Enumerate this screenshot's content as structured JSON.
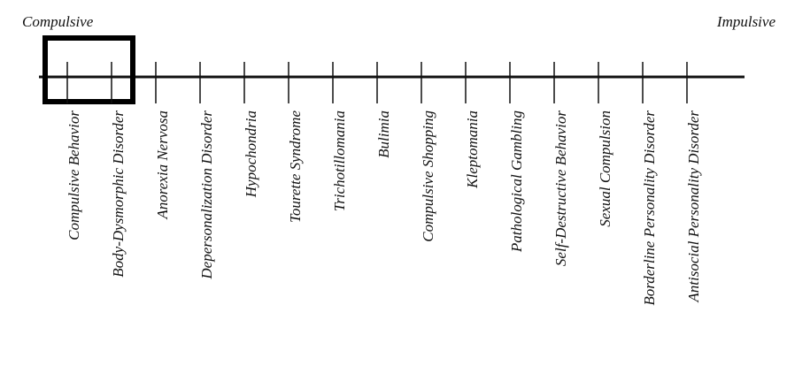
{
  "header": {
    "left": "Compulsive",
    "right": "Impulsive"
  },
  "items": [
    "Compulsive Behavior",
    "Body-Dysmorphic Disorder",
    "Anorexia Nervosa",
    "Depersonalization Disorder",
    "Hypochondria",
    "Tourette Syndrome",
    "Trichotillomania",
    "Bulimia",
    "Compulsive Shopping",
    "Kleptomania",
    "Pathological Gambling",
    "Self-Destructive Behavior",
    "Sexual Compulsion",
    "Borderline Personality Disorder",
    "Antisocial Personality Disorder"
  ]
}
